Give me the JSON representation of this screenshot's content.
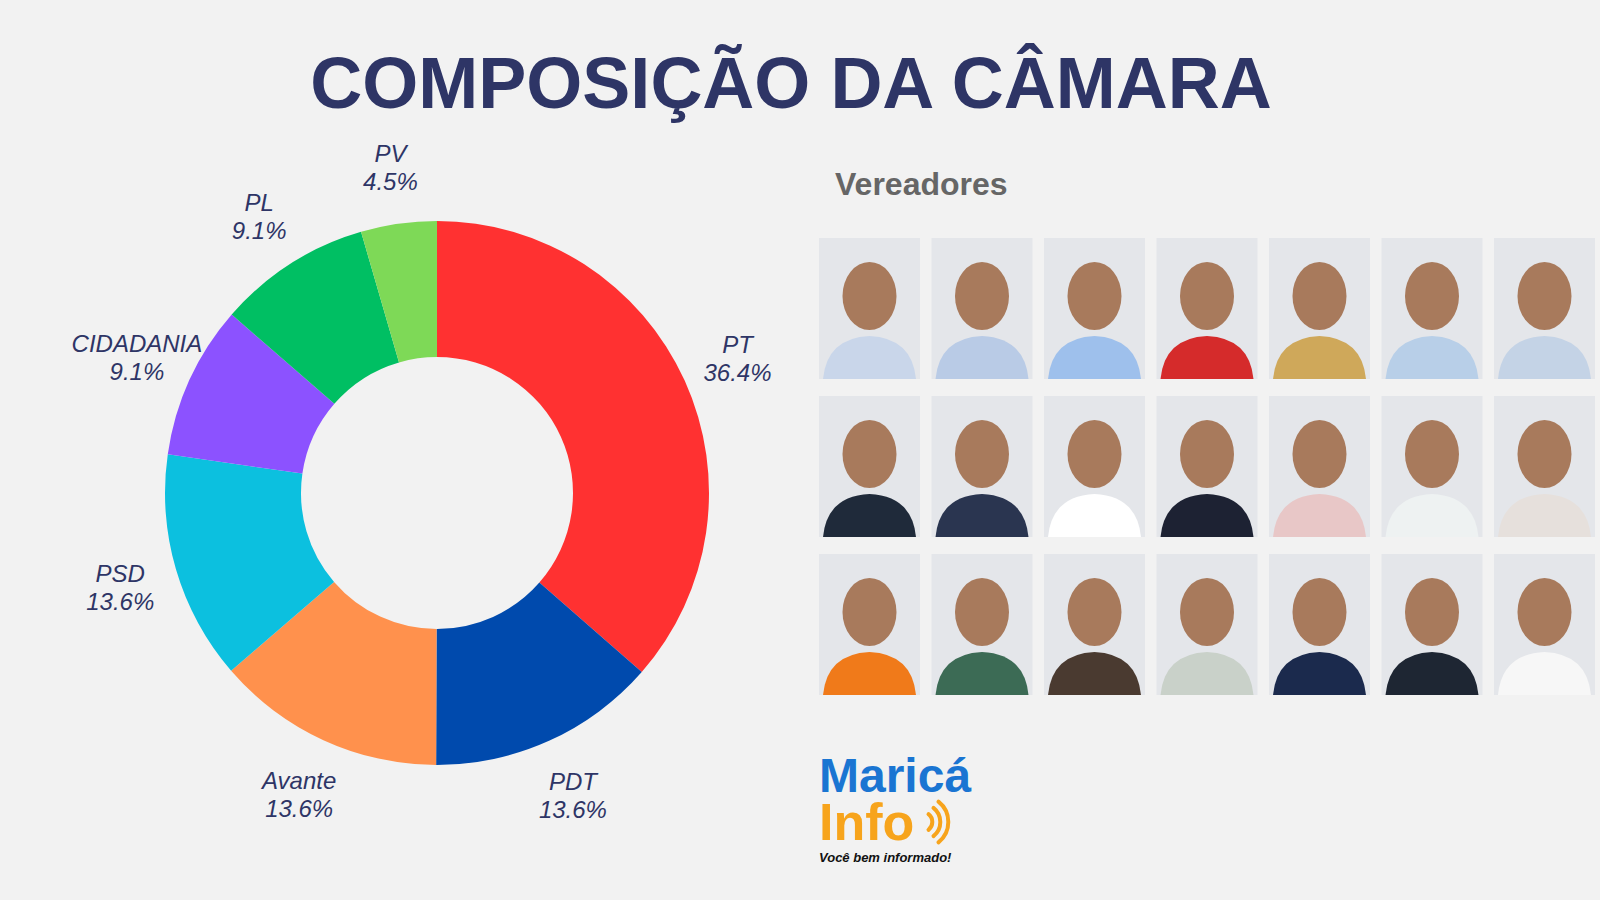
{
  "chart_data": {
    "type": "pie",
    "title": "COMPOSIÇÃO DA CÂMARA",
    "categories": [
      "PT",
      "PDT",
      "Avante",
      "PSD",
      "CIDADANIA",
      "PL",
      "PV"
    ],
    "values": [
      36.4,
      13.6,
      13.6,
      13.6,
      9.1,
      9.1,
      4.5
    ],
    "value_labels": [
      "36.4%",
      "13.6%",
      "13.6%",
      "13.6%",
      "9.1%",
      "9.1%",
      "4.5%"
    ],
    "colors": [
      "#ff3131",
      "#004aad",
      "#ff914d",
      "#0cc0df",
      "#8c52ff",
      "#00bf63",
      "#7ed957"
    ],
    "data_labels": true
  },
  "photos": {
    "heading": "Vereadores"
  },
  "logo": {
    "name": "Maricá",
    "name2": "Info",
    "tagline": "Você bem informado!"
  }
}
